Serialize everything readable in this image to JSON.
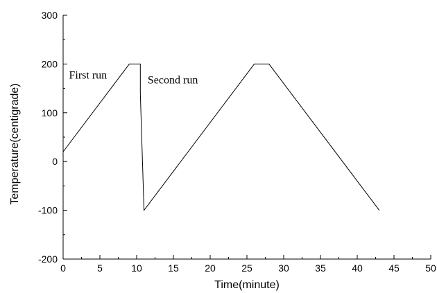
{
  "chart_data": {
    "type": "line",
    "title": "",
    "xlabel": "Time(minute)",
    "ylabel": "Temperature(centigrade)",
    "xlim": [
      0,
      50
    ],
    "ylim": [
      -200,
      300
    ],
    "x_ticks": [
      0,
      5,
      10,
      15,
      20,
      25,
      30,
      35,
      40,
      45,
      50
    ],
    "y_ticks": [
      -200,
      -100,
      0,
      100,
      200,
      300
    ],
    "grid": false,
    "series": [
      {
        "x": [
          0,
          9,
          10.5,
          10.5,
          11,
          26,
          28,
          43
        ],
        "y": [
          20,
          200,
          200,
          140,
          -100,
          200,
          200,
          -100
        ]
      }
    ],
    "annotations": [
      {
        "text": "First run",
        "x": 0.8,
        "y": 170
      },
      {
        "text": "Second run",
        "x": 11.5,
        "y": 160
      }
    ]
  }
}
